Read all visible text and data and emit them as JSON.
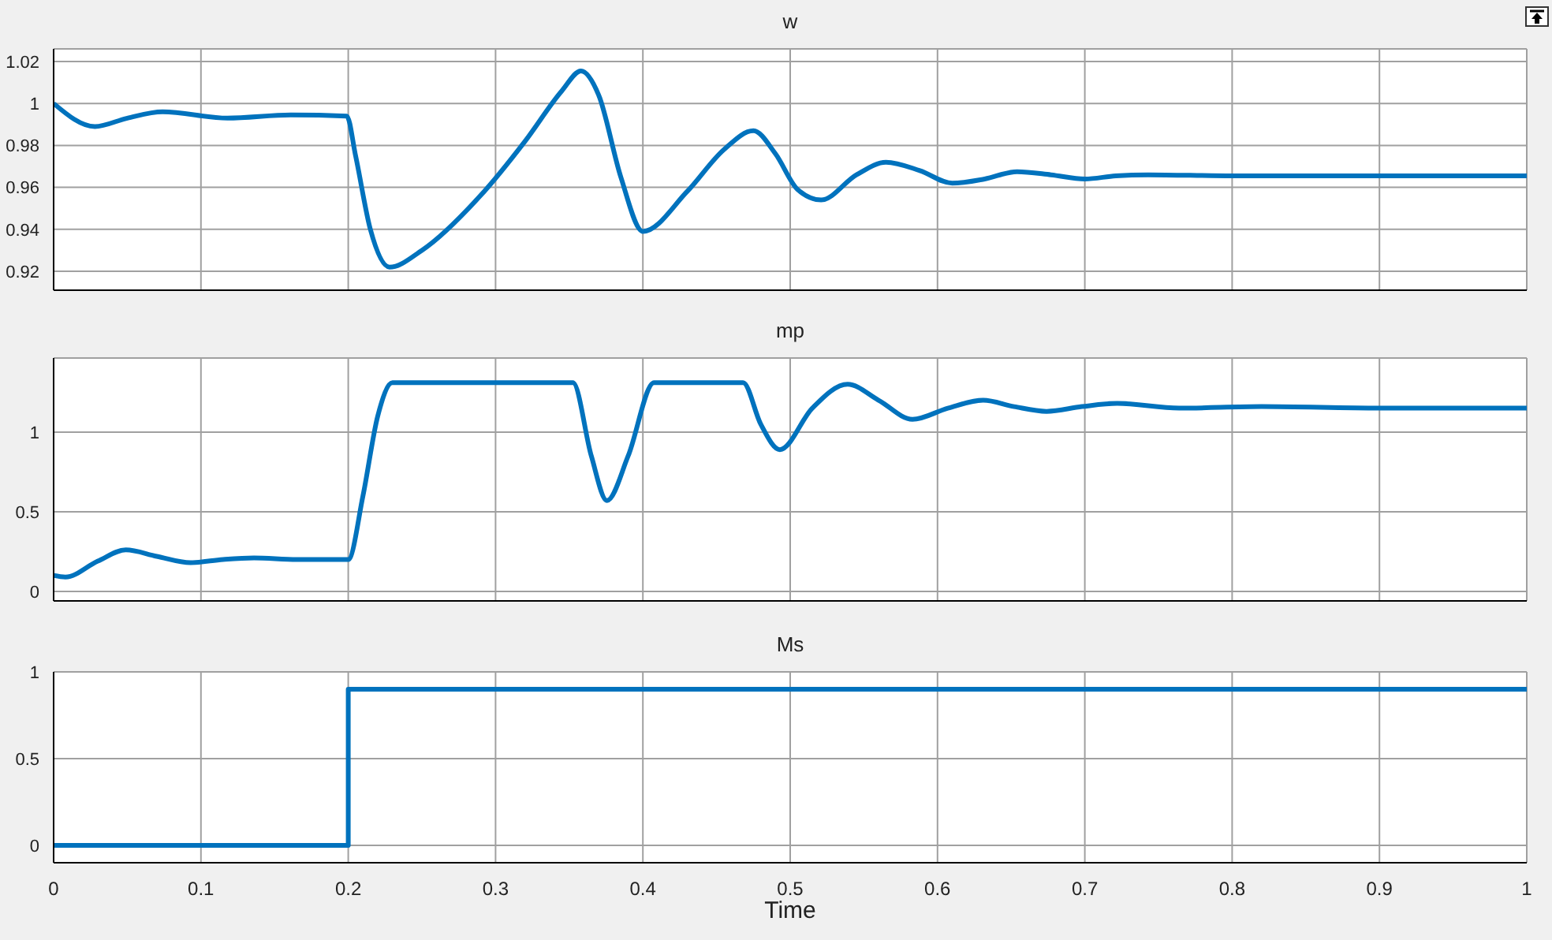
{
  "chart_data": [
    {
      "type": "line",
      "title": "w",
      "xlim": [
        0,
        1
      ],
      "xticks": [
        0,
        0.1,
        0.2,
        0.3,
        0.4,
        0.5,
        0.6,
        0.7,
        0.8,
        0.9,
        1
      ],
      "ylim": [
        0.911,
        1.026
      ],
      "yticks": [
        0.92,
        0.94,
        0.96,
        0.98,
        1,
        1.02
      ],
      "grid": true,
      "tick_labels": "y",
      "series": [
        {
          "color": "#0072bd",
          "x": [
            0,
            0.028,
            0.05,
            0.074,
            0.118,
            0.161,
            0.199,
            0.205,
            0.215,
            0.228,
            0.25,
            0.289,
            0.32,
            0.345,
            0.358,
            0.37,
            0.385,
            0.4,
            0.43,
            0.455,
            0.475,
            0.49,
            0.505,
            0.521,
            0.545,
            0.565,
            0.588,
            0.61,
            0.632,
            0.654,
            0.677,
            0.7,
            0.721,
            0.743,
            0.8,
            0.9,
            1
          ],
          "values": [
            1,
            0.989,
            0.993,
            0.996,
            0.993,
            0.9945,
            0.994,
            0.975,
            0.94,
            0.922,
            0.93,
            0.9555,
            0.982,
            1.006,
            1.0155,
            1.004,
            0.965,
            0.939,
            0.958,
            0.978,
            0.987,
            0.976,
            0.959,
            0.954,
            0.966,
            0.972,
            0.968,
            0.962,
            0.964,
            0.9675,
            0.966,
            0.964,
            0.9655,
            0.966,
            0.9655,
            0.9655,
            0.9655
          ]
        }
      ]
    },
    {
      "type": "line",
      "title": "mp",
      "xlim": [
        0,
        1
      ],
      "xticks": [
        0,
        0.1,
        0.2,
        0.3,
        0.4,
        0.5,
        0.6,
        0.7,
        0.8,
        0.9,
        1
      ],
      "ylim": [
        -0.06,
        1.465
      ],
      "yticks": [
        0,
        0.5,
        1
      ],
      "grid": true,
      "tick_labels": "y",
      "series": [
        {
          "color": "#0072bd",
          "x": [
            0,
            0.008,
            0.03,
            0.049,
            0.07,
            0.093,
            0.115,
            0.136,
            0.165,
            0.2,
            0.21,
            0.22,
            0.23,
            0.3,
            0.3525,
            0.365,
            0.3756,
            0.39,
            0.4076,
            0.44,
            0.468,
            0.48,
            0.493,
            0.515,
            0.539,
            0.56,
            0.583,
            0.607,
            0.631,
            0.652,
            0.674,
            0.698,
            0.722,
            0.764,
            0.82,
            0.9,
            1
          ],
          "values": [
            0.1,
            0.09,
            0.19,
            0.26,
            0.22,
            0.18,
            0.2,
            0.21,
            0.2,
            0.2,
            0.6,
            1.1,
            1.31,
            1.31,
            1.31,
            0.85,
            0.57,
            0.85,
            1.31,
            1.31,
            1.31,
            1.05,
            0.89,
            1.15,
            1.3,
            1.2,
            1.08,
            1.15,
            1.2,
            1.16,
            1.13,
            1.16,
            1.18,
            1.15,
            1.16,
            1.15,
            1.15
          ]
        }
      ]
    },
    {
      "type": "step",
      "title": "Ms",
      "xlabel": "Time",
      "xlim": [
        0,
        1
      ],
      "xticks": [
        0,
        0.1,
        0.2,
        0.3,
        0.4,
        0.5,
        0.6,
        0.7,
        0.8,
        0.9,
        1
      ],
      "ylim": [
        -0.1,
        1
      ],
      "yticks": [
        0,
        0.5,
        1
      ],
      "grid": true,
      "series": [
        {
          "color": "#0072bd",
          "x": [
            0,
            0.2,
            1
          ],
          "values": [
            0,
            0.9,
            0.9
          ]
        }
      ]
    }
  ]
}
